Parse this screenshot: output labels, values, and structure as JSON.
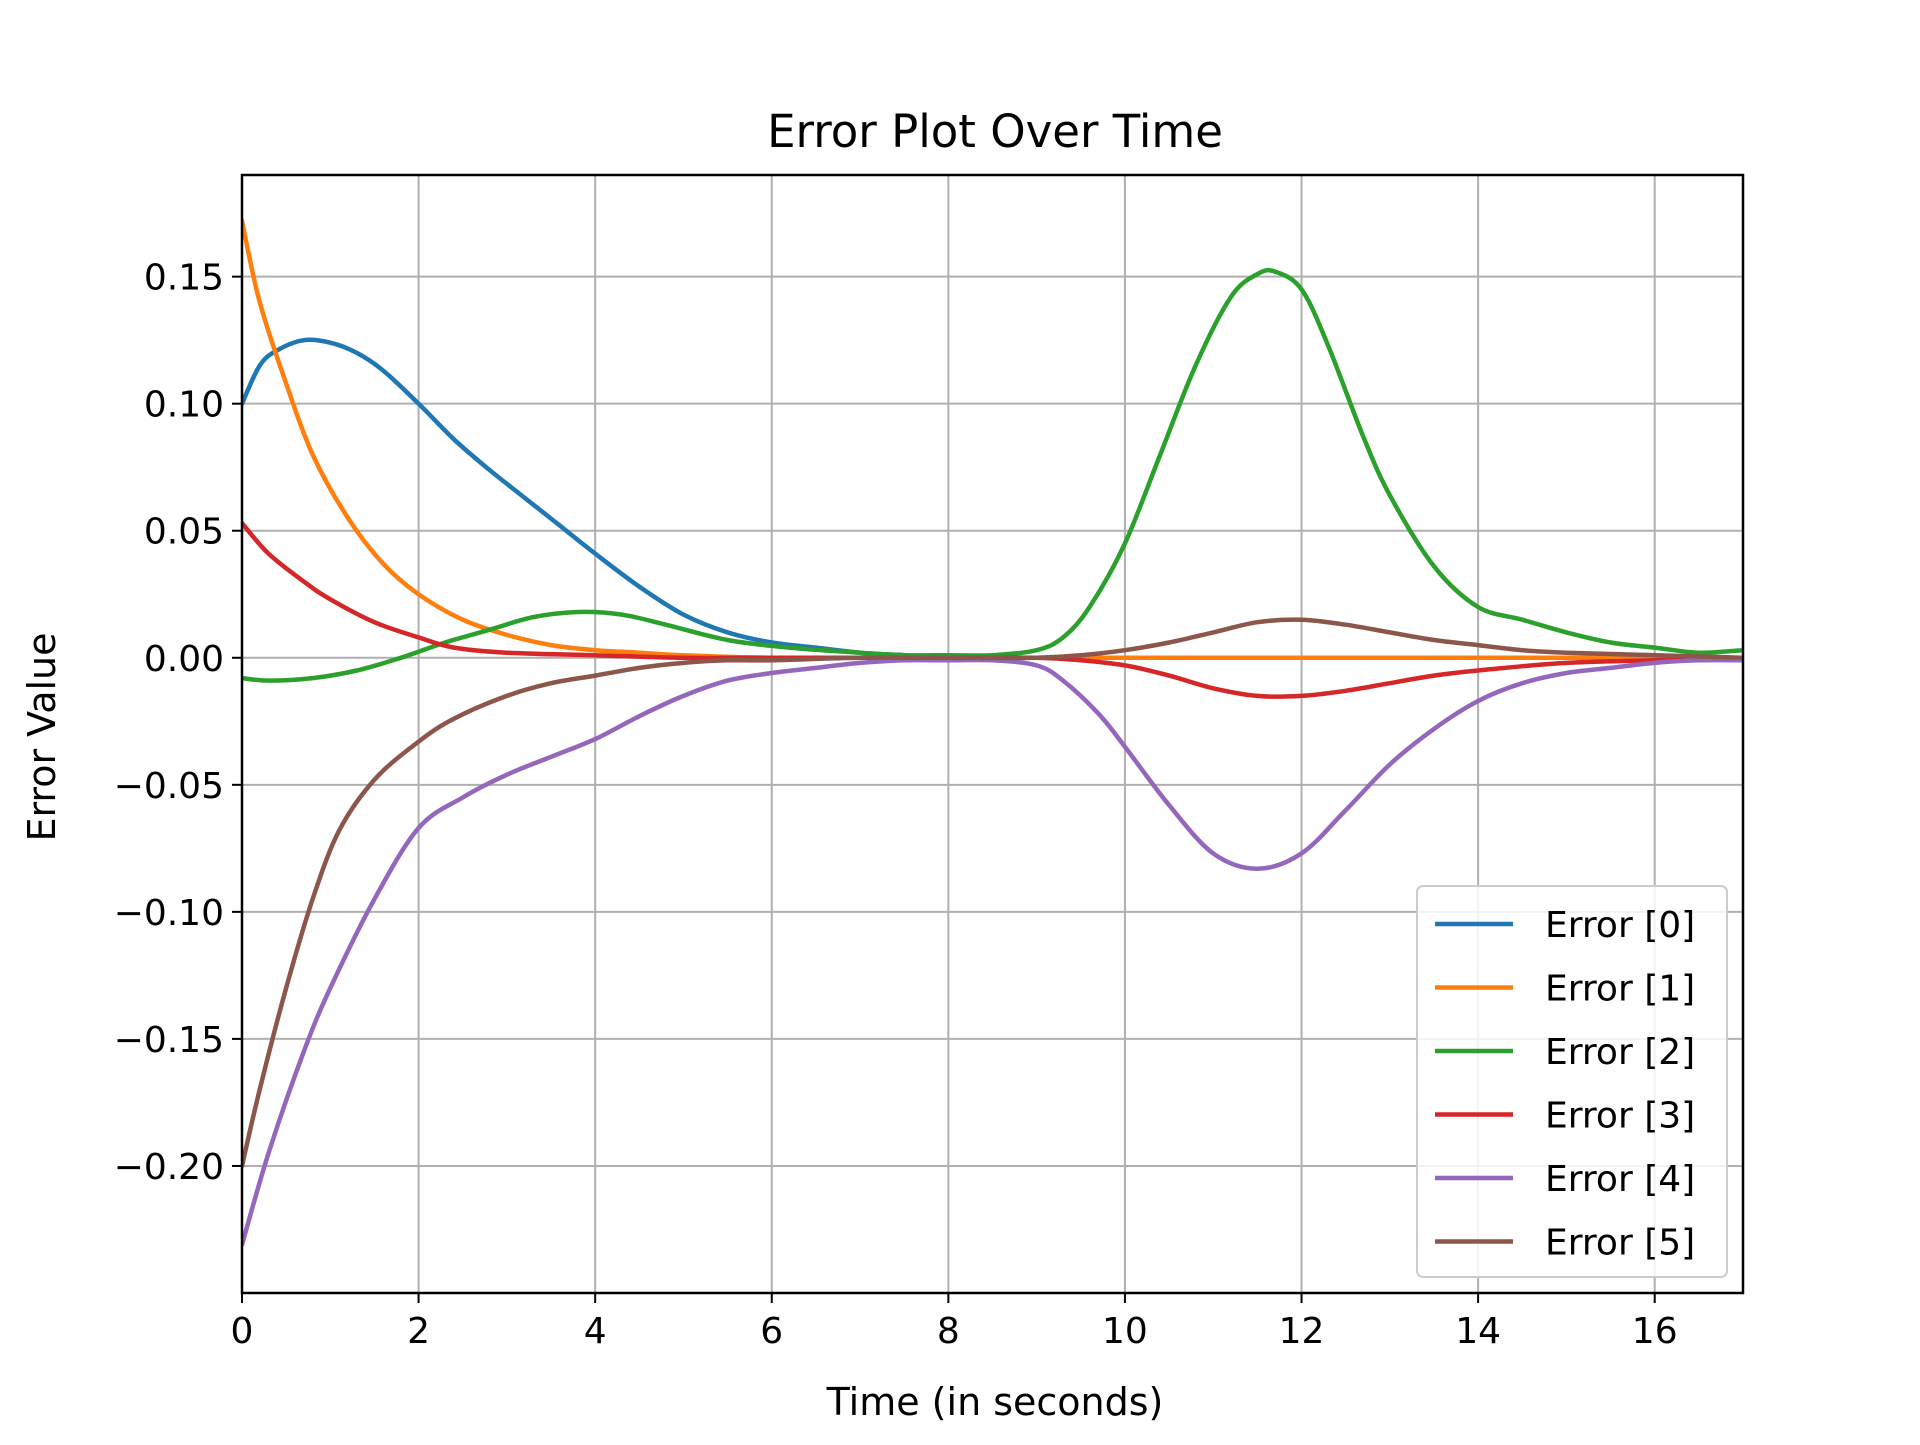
{
  "chart_data": {
    "type": "line",
    "title": "Error Plot Over Time",
    "xlabel": "Time (in seconds)",
    "ylabel": "Error Value",
    "xlim": [
      0,
      17
    ],
    "ylim": [
      -0.25,
      0.19
    ],
    "xticks": [
      0,
      2,
      4,
      6,
      8,
      10,
      12,
      14,
      16
    ],
    "xtick_labels": [
      "0",
      "2",
      "4",
      "6",
      "8",
      "10",
      "12",
      "14",
      "16"
    ],
    "yticks": [
      -0.2,
      -0.15,
      -0.1,
      -0.05,
      0.0,
      0.05,
      0.1,
      0.15
    ],
    "ytick_labels": [
      "−0.20",
      "−0.15",
      "−0.10",
      "−0.05",
      "0.00",
      "0.05",
      "0.10",
      "0.15"
    ],
    "grid": true,
    "legend_position": "lower-right",
    "series": [
      {
        "name": "Error [0]",
        "color": "#1f77b4",
        "x": [
          0,
          0.2,
          0.4,
          0.7,
          1.0,
          1.3,
          1.6,
          2.0,
          2.4,
          2.8,
          3.2,
          3.6,
          4.0,
          4.5,
          5.0,
          5.5,
          6.0,
          6.5,
          7.0,
          7.5,
          8.0,
          9.0,
          10.0,
          12.0,
          14.0,
          17.0
        ],
        "y": [
          0.1,
          0.115,
          0.121,
          0.125,
          0.124,
          0.12,
          0.113,
          0.1,
          0.086,
          0.074,
          0.063,
          0.052,
          0.041,
          0.028,
          0.017,
          0.01,
          0.006,
          0.004,
          0.002,
          0.001,
          0.0,
          0.0,
          0.0,
          0.0,
          0.0,
          0.0
        ]
      },
      {
        "name": "Error [1]",
        "color": "#ff7f0e",
        "x": [
          0,
          0.2,
          0.5,
          0.8,
          1.2,
          1.6,
          2.0,
          2.5,
          3.0,
          3.5,
          4.0,
          4.5,
          5.0,
          6.0,
          7.0,
          8.0,
          10.0,
          12.0,
          14.0,
          17.0
        ],
        "y": [
          0.172,
          0.14,
          0.108,
          0.08,
          0.055,
          0.037,
          0.025,
          0.015,
          0.009,
          0.005,
          0.003,
          0.002,
          0.001,
          0.0,
          0.0,
          0.0,
          0.0,
          0.0,
          0.0,
          0.0
        ]
      },
      {
        "name": "Error [2]",
        "color": "#2ca02c",
        "x": [
          0,
          0.3,
          0.8,
          1.3,
          1.8,
          2.3,
          2.8,
          3.3,
          3.8,
          4.3,
          4.8,
          5.5,
          6.2,
          7.0,
          7.5,
          8.0,
          8.5,
          9.0,
          9.3,
          9.6,
          10.0,
          10.4,
          10.8,
          11.2,
          11.5,
          11.7,
          12.0,
          12.3,
          12.7,
          13.0,
          13.5,
          14.0,
          14.5,
          15.0,
          15.5,
          16.0,
          16.5,
          17.0
        ],
        "y": [
          -0.008,
          -0.009,
          -0.008,
          -0.005,
          0.0,
          0.006,
          0.011,
          0.016,
          0.018,
          0.017,
          0.013,
          0.007,
          0.004,
          0.002,
          0.001,
          0.001,
          0.001,
          0.003,
          0.008,
          0.02,
          0.045,
          0.08,
          0.115,
          0.142,
          0.151,
          0.152,
          0.145,
          0.123,
          0.087,
          0.064,
          0.036,
          0.02,
          0.015,
          0.01,
          0.006,
          0.004,
          0.002,
          0.003
        ]
      },
      {
        "name": "Error [3]",
        "color": "#d62728",
        "x": [
          0,
          0.3,
          0.7,
          1.0,
          1.5,
          2.0,
          2.4,
          3.0,
          4.0,
          5.0,
          6.0,
          8.0,
          9.0,
          9.5,
          10.0,
          10.5,
          11.0,
          11.5,
          12.0,
          12.5,
          13.0,
          13.5,
          14.0,
          15.0,
          16.0,
          17.0
        ],
        "y": [
          0.053,
          0.041,
          0.03,
          0.023,
          0.014,
          0.008,
          0.004,
          0.002,
          0.001,
          0.0,
          0.0,
          0.0,
          0.0,
          -0.001,
          -0.003,
          -0.007,
          -0.012,
          -0.015,
          -0.015,
          -0.013,
          -0.01,
          -0.007,
          -0.005,
          -0.002,
          -0.001,
          0.0
        ]
      },
      {
        "name": "Error [4]",
        "color": "#9467bd",
        "x": [
          0,
          0.3,
          0.7,
          1.0,
          1.5,
          2.0,
          2.5,
          3.0,
          3.5,
          4.0,
          4.5,
          5.0,
          5.5,
          6.0,
          6.5,
          7.0,
          7.5,
          8.0,
          8.5,
          9.0,
          9.3,
          9.7,
          10.0,
          10.5,
          11.0,
          11.5,
          12.0,
          12.5,
          13.0,
          13.5,
          14.0,
          14.5,
          15.0,
          15.5,
          16.0,
          16.5,
          17.0
        ],
        "y": [
          -0.231,
          -0.195,
          -0.155,
          -0.13,
          -0.095,
          -0.067,
          -0.055,
          -0.046,
          -0.039,
          -0.032,
          -0.023,
          -0.015,
          -0.009,
          -0.006,
          -0.004,
          -0.002,
          -0.001,
          -0.001,
          -0.001,
          -0.003,
          -0.009,
          -0.022,
          -0.035,
          -0.058,
          -0.077,
          -0.083,
          -0.077,
          -0.06,
          -0.042,
          -0.028,
          -0.017,
          -0.01,
          -0.006,
          -0.004,
          -0.002,
          -0.001,
          -0.001
        ]
      },
      {
        "name": "Error [5]",
        "color": "#8c564b",
        "x": [
          0,
          0.2,
          0.5,
          0.8,
          1.1,
          1.5,
          2.0,
          2.4,
          3.0,
          3.5,
          4.0,
          4.5,
          5.0,
          5.5,
          6.0,
          7.0,
          8.0,
          9.0,
          9.5,
          10.0,
          10.5,
          11.0,
          11.5,
          12.0,
          12.5,
          13.0,
          13.5,
          14.0,
          14.5,
          15.0,
          16.0,
          17.0
        ],
        "y": [
          -0.2,
          -0.17,
          -0.13,
          -0.095,
          -0.068,
          -0.048,
          -0.033,
          -0.024,
          -0.015,
          -0.01,
          -0.007,
          -0.004,
          -0.002,
          -0.001,
          -0.001,
          0.0,
          0.0,
          0.0,
          0.001,
          0.003,
          0.006,
          0.01,
          0.014,
          0.015,
          0.013,
          0.01,
          0.007,
          0.005,
          0.003,
          0.002,
          0.001,
          0.0
        ]
      }
    ]
  }
}
